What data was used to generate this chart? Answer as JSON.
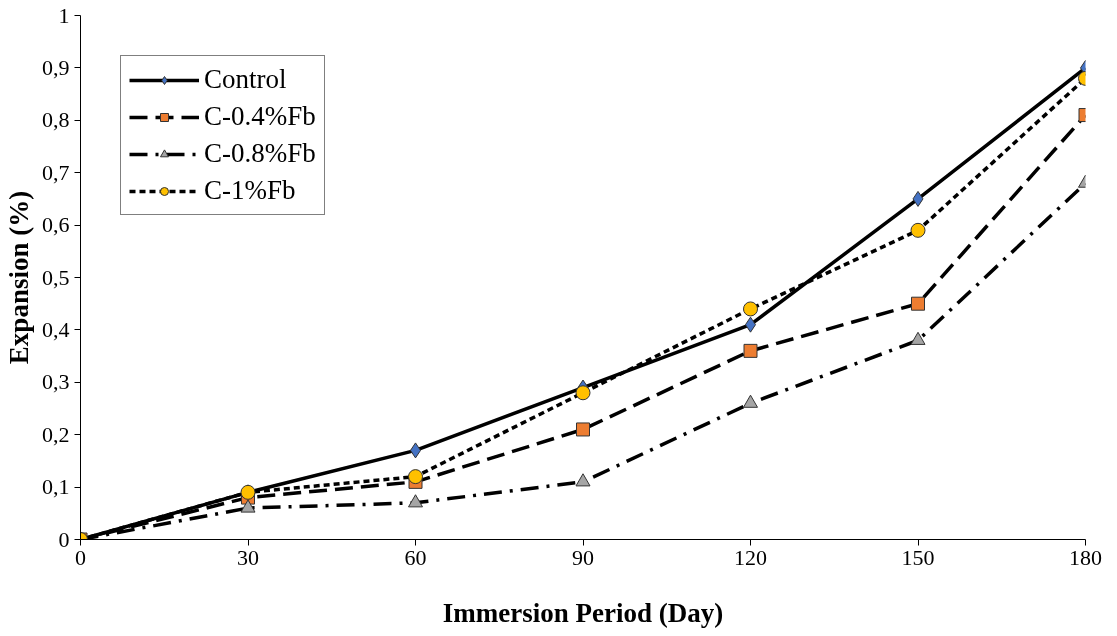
{
  "chart_data": {
    "type": "line",
    "xlabel": "Immersion Period (Day)",
    "ylabel": "Expansion (%)",
    "x": [
      0,
      30,
      60,
      90,
      120,
      150,
      180
    ],
    "xlim": [
      0,
      180
    ],
    "xticks": [
      0,
      30,
      60,
      90,
      120,
      150,
      180
    ],
    "ylim": [
      0,
      1
    ],
    "yticks": [
      0,
      {
        "value": 0.1,
        "label": "0,1"
      },
      {
        "value": 0.2,
        "label": "0,2"
      },
      {
        "value": 0.3,
        "label": "0,3"
      },
      {
        "value": 0.4,
        "label": "0,4"
      },
      {
        "value": 0.5,
        "label": "0,5"
      },
      {
        "value": 0.6,
        "label": "0,6"
      },
      {
        "value": 0.7,
        "label": "0,7"
      },
      {
        "value": 0.8,
        "label": "0,8"
      },
      {
        "value": 0.9,
        "label": "0,9"
      },
      1
    ],
    "grid": false,
    "legend": "top left",
    "series": [
      {
        "name": "Control",
        "color": "#4472c4",
        "marker": "diamond",
        "line_style": "solid",
        "values": [
          0,
          0.09,
          0.17,
          0.29,
          0.41,
          0.65,
          0.9
        ]
      },
      {
        "name": "C-0.4%Fb",
        "color": "#ed7d31",
        "marker": "square",
        "line_style": "dashed",
        "values": [
          0,
          0.08,
          0.11,
          0.21,
          0.36,
          0.45,
          0.81
        ]
      },
      {
        "name": "C-0.8%Fb",
        "color": "#a5a5a5",
        "marker": "triangle",
        "line_style": "dashdot",
        "values": [
          0,
          0.06,
          0.07,
          0.11,
          0.26,
          0.38,
          0.68
        ]
      },
      {
        "name": "C-1%Fb",
        "color": "#ffc000",
        "marker": "circle",
        "line_style": "dotted",
        "values": [
          0,
          0.09,
          0.12,
          0.28,
          0.44,
          0.59,
          0.88
        ]
      }
    ]
  }
}
